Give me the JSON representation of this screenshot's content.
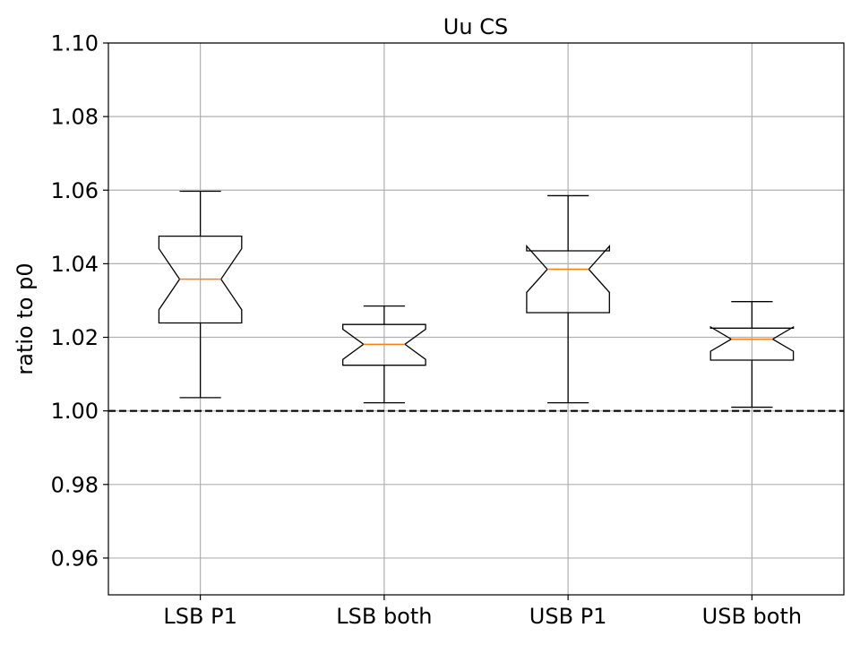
{
  "chart_data": {
    "type": "boxplot",
    "title": "Uu CS",
    "xlabel": "",
    "ylabel": "ratio to p0",
    "ylim": [
      0.95,
      1.1
    ],
    "yticks": [
      "0.96",
      "0.98",
      "1.00",
      "1.02",
      "1.04",
      "1.06",
      "1.08",
      "1.10"
    ],
    "categories": [
      "LSB P1",
      "LSB both",
      "USB P1",
      "USB both"
    ],
    "boxes": [
      {
        "whisker_low": 1.0036,
        "q1": 1.0239,
        "notch_low": 1.0275,
        "median": 1.0358,
        "notch_high": 1.0441,
        "q3": 1.0475,
        "whisker_high": 1.0597
      },
      {
        "whisker_low": 1.0022,
        "q1": 1.0124,
        "notch_low": 1.014,
        "median": 1.0181,
        "notch_high": 1.0222,
        "q3": 1.0235,
        "whisker_high": 1.0285
      },
      {
        "whisker_low": 1.0022,
        "q1": 1.0267,
        "notch_low": 1.0322,
        "median": 1.0385,
        "notch_high": 1.0448,
        "q3": 1.0435,
        "whisker_high": 1.0585
      },
      {
        "whisker_low": 1.001,
        "q1": 1.0138,
        "notch_low": 1.0162,
        "median": 1.0195,
        "notch_high": 1.0228,
        "q3": 1.0225,
        "whisker_high": 1.0297
      }
    ],
    "reference_line": {
      "y": 1.0,
      "style": "dashed",
      "color": "#000000"
    },
    "grid": true,
    "colors": {
      "box": "#000000",
      "median": "#ff7f0e",
      "grid": "#b0b0b0"
    }
  }
}
